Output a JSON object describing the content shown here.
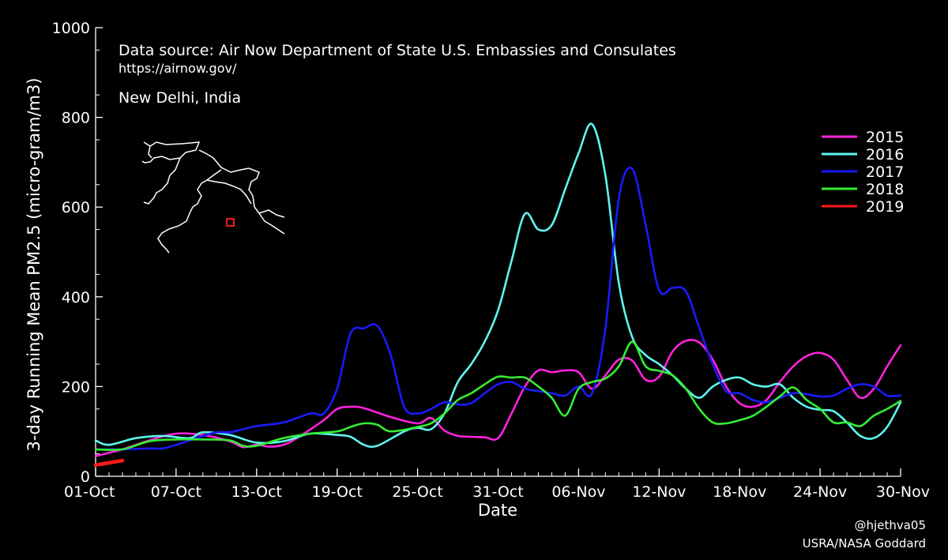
{
  "chart_data": {
    "type": "line",
    "ylabel": "3-day Running Mean PM2.5 (micro-gram/m3)",
    "xlabel": "Date",
    "ylim": [
      0,
      1000
    ],
    "yticks": [
      0,
      200,
      400,
      600,
      800,
      1000
    ],
    "xlim": [
      1,
      61
    ],
    "xticks": [
      {
        "label": "01-Oct",
        "day": 1
      },
      {
        "label": "07-Oct",
        "day": 7
      },
      {
        "label": "13-Oct",
        "day": 13
      },
      {
        "label": "19-Oct",
        "day": 19
      },
      {
        "label": "25-Oct",
        "day": 25
      },
      {
        "label": "31-Oct",
        "day": 31
      },
      {
        "label": "06-Nov",
        "day": 37
      },
      {
        "label": "12-Nov",
        "day": 43
      },
      {
        "label": "18-Nov",
        "day": 49
      },
      {
        "label": "24-Nov",
        "day": 55
      },
      {
        "label": "30-Nov",
        "day": 61
      }
    ],
    "annotations": {
      "source": "Data source: Air Now Department of State U.S. Embassies and Consulates",
      "url": "https://airnow.gov/",
      "location": "New Delhi, India"
    },
    "legend_position": "top-right",
    "series": [
      {
        "name": "2015",
        "color": "#ff22dd",
        "points": [
          [
            1,
            45
          ],
          [
            3,
            60
          ],
          [
            5,
            80
          ],
          [
            7,
            95
          ],
          [
            9,
            92
          ],
          [
            11,
            78
          ],
          [
            12,
            65
          ],
          [
            13,
            70
          ],
          [
            14,
            66
          ],
          [
            15,
            70
          ],
          [
            16,
            85
          ],
          [
            18,
            125
          ],
          [
            19,
            150
          ],
          [
            20,
            155
          ],
          [
            21,
            152
          ],
          [
            23,
            132
          ],
          [
            25,
            118
          ],
          [
            26,
            130
          ],
          [
            27,
            102
          ],
          [
            28,
            90
          ],
          [
            29,
            88
          ],
          [
            30,
            87
          ],
          [
            31,
            85
          ],
          [
            32,
            140
          ],
          [
            33,
            200
          ],
          [
            34,
            236
          ],
          [
            35,
            232
          ],
          [
            36,
            236
          ],
          [
            37,
            232
          ],
          [
            38,
            195
          ],
          [
            39,
            225
          ],
          [
            40,
            260
          ],
          [
            41,
            258
          ],
          [
            42,
            215
          ],
          [
            43,
            222
          ],
          [
            44,
            278
          ],
          [
            45,
            302
          ],
          [
            46,
            298
          ],
          [
            47,
            260
          ],
          [
            48,
            200
          ],
          [
            49,
            163
          ],
          [
            50,
            155
          ],
          [
            51,
            170
          ],
          [
            52,
            210
          ],
          [
            53,
            245
          ],
          [
            54,
            268
          ],
          [
            55,
            275
          ],
          [
            56,
            260
          ],
          [
            57,
            215
          ],
          [
            58,
            175
          ],
          [
            59,
            195
          ],
          [
            60,
            245
          ],
          [
            61,
            292
          ]
        ]
      },
      {
        "name": "2016",
        "color": "#5ff5f0",
        "points": [
          [
            1,
            80
          ],
          [
            2,
            70
          ],
          [
            4,
            85
          ],
          [
            6,
            90
          ],
          [
            8,
            85
          ],
          [
            9,
            98
          ],
          [
            11,
            92
          ],
          [
            13,
            75
          ],
          [
            15,
            78
          ],
          [
            17,
            95
          ],
          [
            19,
            92
          ],
          [
            20,
            88
          ],
          [
            21,
            70
          ],
          [
            22,
            68
          ],
          [
            24,
            100
          ],
          [
            25,
            108
          ],
          [
            26,
            105
          ],
          [
            27,
            140
          ],
          [
            28,
            210
          ],
          [
            29,
            250
          ],
          [
            30,
            300
          ],
          [
            31,
            370
          ],
          [
            32,
            480
          ],
          [
            33,
            585
          ],
          [
            34,
            550
          ],
          [
            35,
            560
          ],
          [
            36,
            640
          ],
          [
            37,
            720
          ],
          [
            38,
            785
          ],
          [
            39,
            670
          ],
          [
            40,
            430
          ],
          [
            41,
            310
          ],
          [
            42,
            270
          ],
          [
            43,
            250
          ],
          [
            44,
            225
          ],
          [
            45,
            195
          ],
          [
            46,
            175
          ],
          [
            47,
            200
          ],
          [
            48,
            215
          ],
          [
            49,
            220
          ],
          [
            50,
            205
          ],
          [
            51,
            200
          ],
          [
            52,
            205
          ],
          [
            53,
            175
          ],
          [
            54,
            155
          ],
          [
            55,
            148
          ],
          [
            56,
            145
          ],
          [
            57,
            120
          ],
          [
            58,
            90
          ],
          [
            59,
            85
          ],
          [
            60,
            110
          ],
          [
            61,
            165
          ]
        ]
      },
      {
        "name": "2017",
        "color": "#1a1aff",
        "points": [
          [
            1,
            60
          ],
          [
            3,
            60
          ],
          [
            5,
            62
          ],
          [
            6,
            62
          ],
          [
            7,
            70
          ],
          [
            9,
            90
          ],
          [
            10,
            98
          ],
          [
            11,
            98
          ],
          [
            12,
            105
          ],
          [
            13,
            112
          ],
          [
            15,
            120
          ],
          [
            17,
            140
          ],
          [
            18,
            140
          ],
          [
            19,
            195
          ],
          [
            20,
            318
          ],
          [
            21,
            330
          ],
          [
            22,
            335
          ],
          [
            23,
            270
          ],
          [
            24,
            155
          ],
          [
            25,
            140
          ],
          [
            26,
            150
          ],
          [
            27,
            165
          ],
          [
            28,
            160
          ],
          [
            29,
            163
          ],
          [
            30,
            185
          ],
          [
            31,
            205
          ],
          [
            32,
            210
          ],
          [
            33,
            195
          ],
          [
            34,
            190
          ],
          [
            35,
            185
          ],
          [
            36,
            180
          ],
          [
            37,
            200
          ],
          [
            38,
            185
          ],
          [
            39,
            330
          ],
          [
            40,
            620
          ],
          [
            41,
            685
          ],
          [
            42,
            560
          ],
          [
            43,
            415
          ],
          [
            44,
            420
          ],
          [
            45,
            412
          ],
          [
            46,
            330
          ],
          [
            47,
            250
          ],
          [
            48,
            190
          ],
          [
            49,
            185
          ],
          [
            50,
            170
          ],
          [
            51,
            165
          ],
          [
            52,
            175
          ],
          [
            53,
            185
          ],
          [
            54,
            183
          ],
          [
            55,
            178
          ],
          [
            56,
            180
          ],
          [
            57,
            195
          ],
          [
            58,
            205
          ],
          [
            59,
            200
          ],
          [
            60,
            180
          ],
          [
            61,
            180
          ]
        ]
      },
      {
        "name": "2018",
        "color": "#33ee33",
        "points": [
          [
            1,
            60
          ],
          [
            3,
            60
          ],
          [
            5,
            78
          ],
          [
            7,
            82
          ],
          [
            9,
            82
          ],
          [
            11,
            80
          ],
          [
            12,
            68
          ],
          [
            13,
            68
          ],
          [
            15,
            85
          ],
          [
            17,
            95
          ],
          [
            19,
            100
          ],
          [
            20,
            110
          ],
          [
            21,
            118
          ],
          [
            22,
            115
          ],
          [
            23,
            100
          ],
          [
            25,
            110
          ],
          [
            26,
            118
          ],
          [
            27,
            140
          ],
          [
            28,
            170
          ],
          [
            29,
            185
          ],
          [
            30,
            205
          ],
          [
            31,
            222
          ],
          [
            32,
            220
          ],
          [
            33,
            220
          ],
          [
            34,
            200
          ],
          [
            35,
            175
          ],
          [
            36,
            135
          ],
          [
            37,
            195
          ],
          [
            38,
            210
          ],
          [
            39,
            218
          ],
          [
            40,
            245
          ],
          [
            41,
            300
          ],
          [
            42,
            245
          ],
          [
            43,
            235
          ],
          [
            44,
            225
          ],
          [
            45,
            195
          ],
          [
            46,
            150
          ],
          [
            47,
            120
          ],
          [
            48,
            118
          ],
          [
            49,
            125
          ],
          [
            50,
            135
          ],
          [
            51,
            155
          ],
          [
            52,
            178
          ],
          [
            53,
            198
          ],
          [
            54,
            170
          ],
          [
            55,
            150
          ],
          [
            56,
            120
          ],
          [
            57,
            120
          ],
          [
            58,
            112
          ],
          [
            59,
            135
          ],
          [
            60,
            150
          ],
          [
            61,
            168
          ]
        ]
      },
      {
        "name": "2019",
        "color": "#ff1a1a",
        "points": [
          [
            1,
            25
          ],
          [
            2,
            30
          ],
          [
            3,
            35
          ]
        ]
      }
    ]
  },
  "credits": {
    "handle": "@hjethva05",
    "org": "USRA/NASA Goddard"
  },
  "map": {
    "marker_color": "#ff2222"
  }
}
